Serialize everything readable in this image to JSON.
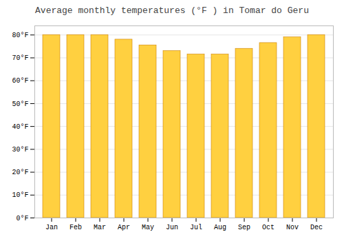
{
  "chart_data": {
    "type": "bar",
    "title": "Average monthly temperatures (°F ) in Tomar do Geru",
    "categories": [
      "Jan",
      "Feb",
      "Mar",
      "Apr",
      "May",
      "Jun",
      "Jul",
      "Aug",
      "Sep",
      "Oct",
      "Nov",
      "Dec"
    ],
    "values": [
      80,
      80,
      80,
      78,
      75.5,
      73,
      71.5,
      71.5,
      74,
      76.5,
      79,
      80
    ],
    "color": "#FFD040",
    "ylim": [
      0,
      84
    ],
    "yticks": [
      {
        "value": 0,
        "label": "0°F"
      },
      {
        "value": 10,
        "label": "10°F"
      },
      {
        "value": 20,
        "label": "20°F"
      },
      {
        "value": 30,
        "label": "30°F"
      },
      {
        "value": 40,
        "label": "40°F"
      },
      {
        "value": 50,
        "label": "50°F"
      },
      {
        "value": 60,
        "label": "60°F"
      },
      {
        "value": 70,
        "label": "70°F"
      },
      {
        "value": 80,
        "label": "80°F"
      }
    ],
    "grid": true
  }
}
